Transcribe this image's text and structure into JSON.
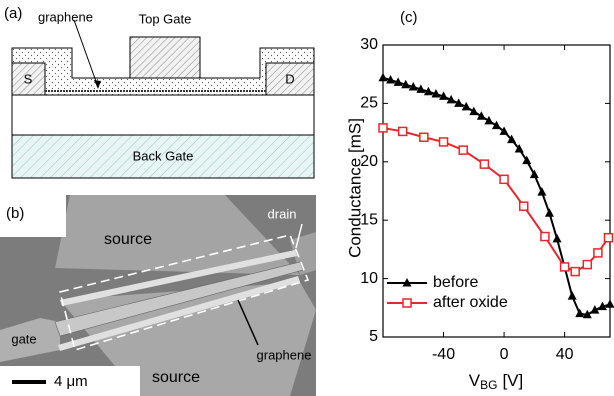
{
  "panel_a": {
    "label": "(a)",
    "graphene": "graphene",
    "top_gate": "Top Gate",
    "source": "S",
    "drain": "D",
    "back_gate": "Back Gate"
  },
  "panel_b": {
    "label": "(b)",
    "source_top": "source",
    "source_bottom": "source",
    "drain": "drain",
    "gate": "gate",
    "graphene": "graphene",
    "scale_bar": "4 μm"
  },
  "chart_data": {
    "type": "line",
    "panel_label": "(c)",
    "ylabel": "Conductance [mS]",
    "xlabel": "V",
    "xlabel_subscript": "BG",
    "xlabel_unit": "[V]",
    "xlim": [
      -80,
      70
    ],
    "xticks": [
      -40,
      0,
      40
    ],
    "ylim": [
      5,
      30
    ],
    "yticks": [
      5,
      10,
      15,
      20,
      25,
      30
    ],
    "legend": "lower left",
    "series": [
      {
        "name": "before",
        "color": "#000000",
        "marker": "triangle",
        "x": [
          -80,
          -75,
          -70,
          -65,
          -60,
          -55,
          -50,
          -45,
          -40,
          -35,
          -30,
          -25,
          -20,
          -15,
          -10,
          -5,
          0,
          5,
          10,
          15,
          20,
          25,
          30,
          35,
          40,
          45,
          50,
          55,
          60,
          65,
          70
        ],
        "values": [
          27.2,
          27.0,
          26.8,
          26.6,
          26.4,
          26.2,
          26.0,
          25.8,
          25.6,
          25.3,
          25.0,
          24.7,
          24.3,
          23.9,
          23.5,
          23.1,
          22.6,
          21.9,
          21.1,
          20.1,
          18.9,
          17.4,
          15.6,
          13.4,
          11.0,
          8.5,
          7.0,
          6.9,
          7.3,
          7.6,
          7.8
        ]
      },
      {
        "name": "after oxide",
        "color": "#e8262b",
        "marker": "square",
        "x": [
          -80,
          -67,
          -53,
          -40,
          -27,
          -13,
          0,
          13,
          27,
          40,
          47,
          55,
          62,
          69
        ],
        "values": [
          22.9,
          22.6,
          22.1,
          21.7,
          21.0,
          19.8,
          18.5,
          16.2,
          13.6,
          11.0,
          10.6,
          11.2,
          12.2,
          13.5
        ]
      }
    ]
  }
}
